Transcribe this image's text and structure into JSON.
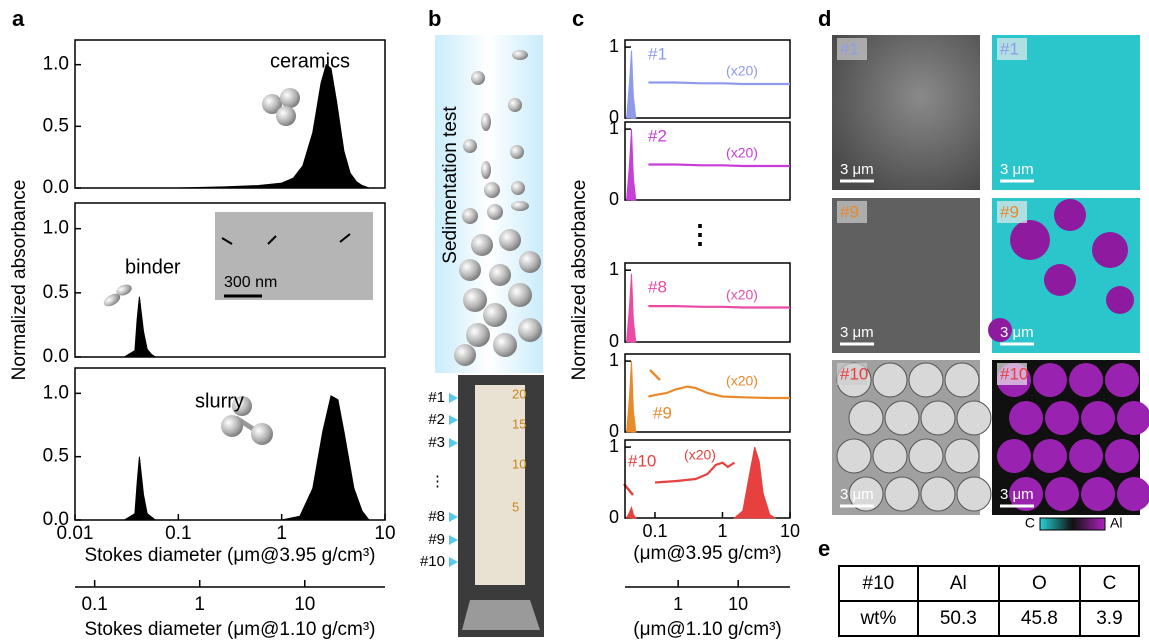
{
  "panel_labels": [
    "a",
    "b",
    "c",
    "d",
    "e"
  ],
  "panel_a": {
    "ylabel": "Normalized absorbance",
    "inset_scale": "300 nm"
  },
  "panel_b": {
    "title": "Sedimentation test",
    "levels": [
      "#1",
      "#2",
      "#3",
      "⋮",
      "#8",
      "#9",
      "#10"
    ],
    "scale": [
      20,
      15,
      10,
      5
    ]
  },
  "panel_c": {
    "ylabel": "Normalized absorbance",
    "ellipsis": "⋮"
  },
  "panel_d": {
    "images": [
      {
        "label": "#1",
        "scale": "3 μm"
      },
      {
        "label": "#1",
        "scale": "3 μm"
      },
      {
        "label": "#9",
        "scale": "3 μm"
      },
      {
        "label": "#9",
        "scale": "3 μm"
      },
      {
        "label": "#10",
        "scale": "3 μm"
      },
      {
        "label": "#10",
        "scale": "3 μm"
      }
    ],
    "colorbar": [
      "C",
      "Al"
    ]
  },
  "table": {
    "rows": [
      [
        "#10",
        "Al",
        "O",
        "C"
      ],
      [
        "wt%",
        "50.3",
        "45.8",
        "3.9"
      ]
    ]
  },
  "chart_data": [
    {
      "type": "area",
      "annotation": "ceramics",
      "xlog": true,
      "xlim": [
        0.01,
        10
      ],
      "ylim": [
        0,
        1.2
      ],
      "yticks": [
        {
          "value": 0,
          "label": "0.0"
        },
        {
          "value": 0.5,
          "label": "0.5"
        },
        {
          "value": 1,
          "label": "1.0"
        }
      ],
      "series": [
        {
          "color": "#000000",
          "x": [
            0.1,
            0.3,
            0.6,
            1,
            1.3,
            1.6,
            2,
            2.4,
            2.7,
            3,
            3.4,
            4,
            4.6,
            5.3,
            6,
            7
          ],
          "values": [
            0,
            0.01,
            0.02,
            0.04,
            0.08,
            0.18,
            0.45,
            0.85,
            1.0,
            0.97,
            0.7,
            0.3,
            0.12,
            0.05,
            0.02,
            0
          ]
        }
      ]
    },
    {
      "type": "area",
      "annotation": "binder",
      "xlog": true,
      "xlim": [
        0.01,
        10
      ],
      "ylim": [
        0,
        1.2
      ],
      "yticks": [
        {
          "value": 0,
          "label": "0.0"
        },
        {
          "value": 0.5,
          "label": "0.5"
        },
        {
          "value": 1,
          "label": "1.0"
        }
      ],
      "series": [
        {
          "color": "#000000",
          "x": [
            0.03,
            0.038,
            0.04,
            0.042,
            0.046,
            0.05,
            0.055,
            0.06
          ],
          "values": [
            0,
            0.05,
            0.3,
            0.47,
            0.2,
            0.06,
            0.02,
            0
          ]
        }
      ]
    },
    {
      "type": "area",
      "annotation": "slurry",
      "xlog": true,
      "xlim": [
        0.01,
        10
      ],
      "ylim": [
        0,
        1.2
      ],
      "yticks": [
        {
          "value": 0,
          "label": "0.0"
        },
        {
          "value": 0.5,
          "label": "0.5"
        },
        {
          "value": 1,
          "label": "1.0"
        }
      ],
      "xticks": [
        0.01,
        0.1,
        1,
        10
      ],
      "xlabel": "Stokes diameter (μm@3.95 g/cm³)",
      "x2lim": [
        0.065,
        58
      ],
      "x2ticks": [
        0.1,
        1,
        10
      ],
      "x2label": "Stokes diameter (μm@1.10 g/cm³)",
      "series": [
        {
          "color": "#000000",
          "x": [
            0.03,
            0.038,
            0.04,
            0.042,
            0.046,
            0.05,
            0.06,
            1,
            1.5,
            2,
            2.5,
            3,
            3.5,
            4,
            5,
            6,
            7
          ],
          "values": [
            0,
            0.05,
            0.3,
            0.5,
            0.2,
            0.05,
            0,
            0,
            0.03,
            0.25,
            0.7,
            0.98,
            0.95,
            0.7,
            0.25,
            0.07,
            0
          ]
        }
      ]
    },
    {
      "type": "line",
      "label": "#1",
      "annotation": "(x20)",
      "xlog": true,
      "xlim": [
        0.036,
        10
      ],
      "ylim": [
        0,
        1.1
      ],
      "yticks": [
        0,
        1
      ],
      "series": [
        {
          "type": "area",
          "color": "#8f9bea",
          "x": [
            0.038,
            0.042,
            0.045,
            0.048,
            0.052
          ],
          "values": [
            0,
            0.5,
            0.95,
            0.3,
            0
          ]
        },
        {
          "type": "line",
          "color": "#8f9bea",
          "x": [
            0.08,
            0.2,
            0.5,
            1,
            2,
            5,
            10
          ],
          "values": [
            0.5,
            0.5,
            0.49,
            0.49,
            0.48,
            0.48,
            0.48
          ]
        }
      ]
    },
    {
      "type": "line",
      "label": "#2",
      "annotation": "(x20)",
      "xlog": true,
      "xlim": [
        0.036,
        10
      ],
      "ylim": [
        0,
        1.1
      ],
      "yticks": [
        0,
        1
      ],
      "series": [
        {
          "type": "area",
          "color": "#c63fd6",
          "x": [
            0.038,
            0.042,
            0.045,
            0.048,
            0.052
          ],
          "values": [
            0,
            0.5,
            1.0,
            0.3,
            0
          ]
        },
        {
          "type": "line",
          "color": "#c63fd6",
          "x": [
            0.08,
            0.2,
            0.5,
            1,
            2,
            5,
            10
          ],
          "values": [
            0.5,
            0.5,
            0.49,
            0.49,
            0.48,
            0.48,
            0.48
          ]
        }
      ]
    },
    {
      "type": "line",
      "label": "#8",
      "annotation": "(x20)",
      "xlog": true,
      "xlim": [
        0.036,
        10
      ],
      "ylim": [
        0,
        1.1
      ],
      "yticks": [
        0,
        1
      ],
      "series": [
        {
          "type": "area",
          "color": "#e94aa6",
          "x": [
            0.038,
            0.042,
            0.045,
            0.048,
            0.052
          ],
          "values": [
            0,
            0.5,
            0.95,
            0.3,
            0
          ]
        },
        {
          "type": "line",
          "color": "#e94aa6",
          "x": [
            0.08,
            0.2,
            0.5,
            1,
            2,
            5,
            10
          ],
          "values": [
            0.5,
            0.5,
            0.49,
            0.49,
            0.48,
            0.48,
            0.48
          ]
        }
      ]
    },
    {
      "type": "line",
      "label": "#9",
      "annotation": "(x20)",
      "xlog": true,
      "xlim": [
        0.036,
        10
      ],
      "ylim": [
        0,
        1.1
      ],
      "yticks": [
        0,
        1
      ],
      "series": [
        {
          "type": "area",
          "color": "#e8892c",
          "x": [
            0.038,
            0.042,
            0.045,
            0.048,
            0.052
          ],
          "values": [
            0,
            0.5,
            1.0,
            0.3,
            0
          ]
        },
        {
          "type": "line",
          "color": "#e8892c",
          "x": [
            0.08,
            0.1,
            0.15,
            0.2,
            0.3,
            0.4,
            0.6,
            1,
            2,
            5,
            10
          ],
          "values": [
            0.5,
            0.52,
            0.55,
            0.6,
            0.64,
            0.62,
            0.55,
            0.5,
            0.49,
            0.48,
            0.48
          ]
        }
      ]
    },
    {
      "type": "line",
      "label": "#10",
      "annotation": "(x20)",
      "xlog": true,
      "xlim": [
        0.036,
        10
      ],
      "ylim": [
        0,
        1.1
      ],
      "yticks": [
        0,
        1
      ],
      "xticks": [
        0.1,
        1,
        10
      ],
      "xlabel": "(μm@3.95 g/cm³)",
      "x2lim": [
        0.13,
        73
      ],
      "x2ticks": [
        1,
        10
      ],
      "x2label": "(μm@1.10 g/cm³)",
      "series": [
        {
          "type": "area",
          "color": "#e8403f",
          "x": [
            0.038,
            0.042,
            0.045,
            0.048,
            0.052
          ],
          "values": [
            0,
            0.08,
            0.15,
            0.05,
            0
          ]
        },
        {
          "type": "area",
          "color": "#e8403f",
          "x": [
            1.5,
            2,
            2.5,
            3,
            3.5,
            4,
            5,
            6
          ],
          "values": [
            0,
            0.1,
            0.6,
            1.0,
            0.8,
            0.35,
            0.05,
            0
          ]
        },
        {
          "type": "line",
          "color": "#e8403f",
          "x": [
            0.1,
            0.2,
            0.4,
            0.6,
            0.8,
            1,
            1.2,
            1.5
          ],
          "values": [
            0.5,
            0.52,
            0.55,
            0.62,
            0.75,
            0.78,
            0.72,
            0.78
          ]
        }
      ]
    }
  ]
}
